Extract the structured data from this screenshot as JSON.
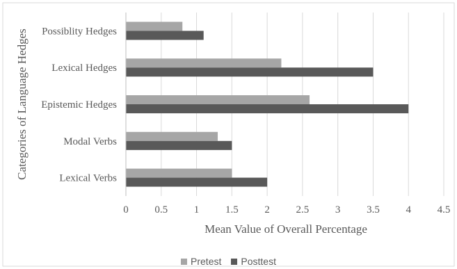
{
  "chart_data": {
    "type": "bar",
    "orientation": "horizontal",
    "categories": [
      "Possiblity Hedges",
      "Lexical Hedges",
      "Epistemic Hedges",
      "Modal Verbs",
      "Lexical Verbs"
    ],
    "series": [
      {
        "name": "Pretest",
        "color": "#a6a6a6",
        "values": [
          0.8,
          2.2,
          2.6,
          1.3,
          1.5
        ]
      },
      {
        "name": "Posttest",
        "color": "#595959",
        "values": [
          1.1,
          3.5,
          4.0,
          1.5,
          2.0
        ]
      }
    ],
    "x_ticks": [
      "0",
      "0.5",
      "1",
      "1.5",
      "2",
      "2.5",
      "3",
      "3.5",
      "4",
      "4.5"
    ],
    "xlim": [
      0,
      4.5
    ],
    "xlabel": "Mean Value of Overall Percentage",
    "ylabel": "Categories of Language Hedges",
    "grid": "vertical",
    "legend_position": "bottom"
  }
}
